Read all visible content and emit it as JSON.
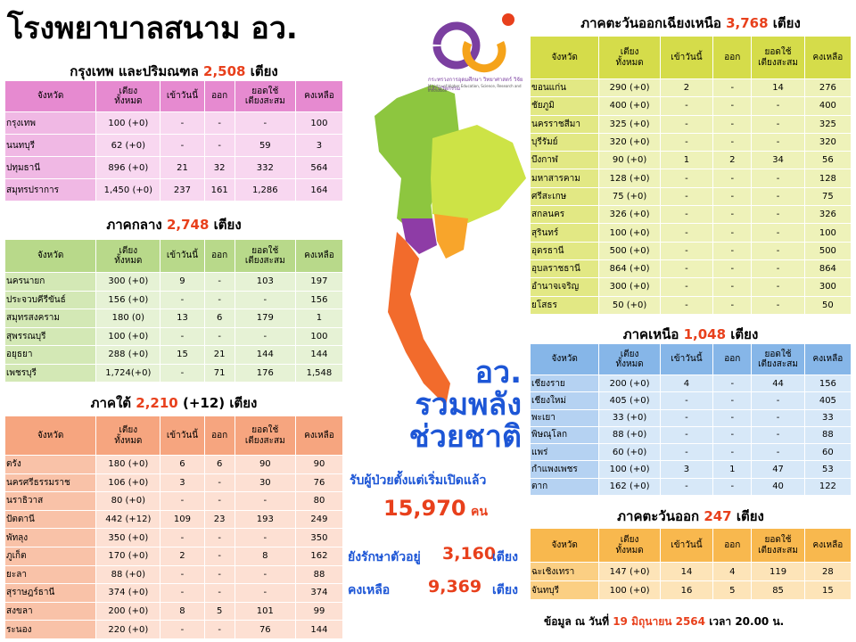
{
  "header": {
    "title": "โรงพยาบาลสนาม อว.",
    "logo_text": "กระทรวงการอุดมศึกษา วิทยาศาสตร์ วิจัยและนวัตกรรม",
    "logo_text_en": "Ministry of Higher Education, Science, Research and Innovation"
  },
  "sections": {
    "bangkok": {
      "name": "กรุงเทพ และปริมณฑล",
      "count": "2,508",
      "unit": "เตียง",
      "columns": [
        "จังหวัด",
        "เตียง\nทั้งหมด",
        "เข้าวันนี้",
        "ออก",
        "ยอดใช้\nเตียงสะสม",
        "คงเหลือ"
      ],
      "rows": [
        [
          "กรุงเทพ",
          "100 (+0)",
          "-",
          "-",
          "-",
          "100"
        ],
        [
          "นนทบุรี",
          "62 (+0)",
          "-",
          "-",
          "59",
          "3"
        ],
        [
          "ปทุมธานี",
          "896 (+0)",
          "21",
          "32",
          "332",
          "564"
        ],
        [
          "สมุทรปราการ",
          "1,450 (+0)",
          "237",
          "161",
          "1,286",
          "164"
        ]
      ]
    },
    "central": {
      "name": "ภาคกลาง",
      "count": "2,748",
      "unit": "เตียง",
      "columns": [
        "จังหวัด",
        "เตียง\nทั้งหมด",
        "เข้าวันนี้",
        "ออก",
        "ยอดใช้\nเตียงสะสม",
        "คงเหลือ"
      ],
      "rows": [
        [
          "นครนายก",
          "300 (+0)",
          "9",
          "-",
          "103",
          "197"
        ],
        [
          "ประจวบคีรีขันธ์",
          "156 (+0)",
          "-",
          "-",
          "-",
          "156"
        ],
        [
          "สมุทรสงคราม",
          "180 (0)",
          "13",
          "6",
          "179",
          "1"
        ],
        [
          "สุพรรณบุรี",
          "100 (+0)",
          "-",
          "-",
          "-",
          "100"
        ],
        [
          "อยุธยา",
          "288 (+0)",
          "15",
          "21",
          "144",
          "144"
        ],
        [
          "เพชรบุรี",
          "1,724(+0)",
          "-",
          "71",
          "176",
          "1,548"
        ]
      ]
    },
    "south": {
      "name": "ภาคใต้",
      "count": "2,210",
      "note": "(+12)",
      "unit": "เตียง",
      "columns": [
        "จังหวัด",
        "เตียง\nทั้งหมด",
        "เข้าวันนี้",
        "ออก",
        "ยอดใช้\nเตียงสะสม",
        "คงเหลือ"
      ],
      "rows": [
        [
          "ตรัง",
          "180 (+0)",
          "6",
          "6",
          "90",
          "90"
        ],
        [
          "นครศรีธรรมราช",
          "106 (+0)",
          "3",
          "-",
          "30",
          "76"
        ],
        [
          "นราธิวาส",
          "80 (+0)",
          "-",
          "-",
          "-",
          "80"
        ],
        [
          "ปัตตานี",
          "442 (+12)",
          "109",
          "23",
          "193",
          "249"
        ],
        [
          "พัทลุง",
          "350 (+0)",
          "-",
          "-",
          "-",
          "350"
        ],
        [
          "ภูเก็ต",
          "170 (+0)",
          "2",
          "-",
          "8",
          "162"
        ],
        [
          "ยะลา",
          "88 (+0)",
          "-",
          "-",
          "-",
          "88"
        ],
        [
          "สุราษฎร์ธานี",
          "374 (+0)",
          "-",
          "-",
          "-",
          "374"
        ],
        [
          "สงขลา",
          "200 (+0)",
          "8",
          "5",
          "101",
          "99"
        ],
        [
          "ระนอง",
          "220 (+0)",
          "-",
          "-",
          "76",
          "144"
        ]
      ]
    },
    "northeast": {
      "name": "ภาคตะวันออกเฉียงเหนือ",
      "count": "3,768",
      "unit": "เตียง",
      "columns": [
        "จังหวัด",
        "เตียง\nทั้งหมด",
        "เข้าวันนี้",
        "ออก",
        "ยอดใช้\nเตียงสะสม",
        "คงเหลือ"
      ],
      "rows": [
        [
          "ขอนแก่น",
          "290 (+0)",
          "2",
          "-",
          "14",
          "276"
        ],
        [
          "ชัยภูมิ",
          "400 (+0)",
          "-",
          "-",
          "-",
          "400"
        ],
        [
          "นครราชสีมา",
          "325 (+0)",
          "-",
          "-",
          "-",
          "325"
        ],
        [
          "บุรีรัมย์",
          "320 (+0)",
          "-",
          "-",
          "-",
          "320"
        ],
        [
          "บึงกาฬ",
          "90 (+0)",
          "1",
          "2",
          "34",
          "56"
        ],
        [
          "มหาสารคาม",
          "128 (+0)",
          "-",
          "-",
          "-",
          "128"
        ],
        [
          "ศรีสะเกษ",
          "75 (+0)",
          "-",
          "-",
          "-",
          "75"
        ],
        [
          "สกลนคร",
          "326 (+0)",
          "-",
          "-",
          "-",
          "326"
        ],
        [
          "สุรินทร์",
          "100 (+0)",
          "-",
          "-",
          "-",
          "100"
        ],
        [
          "อุดรธานี",
          "500 (+0)",
          "-",
          "-",
          "-",
          "500"
        ],
        [
          "อุบลราชธานี",
          "864 (+0)",
          "-",
          "-",
          "-",
          "864"
        ],
        [
          "อำนาจเจริญ",
          "300 (+0)",
          "-",
          "-",
          "-",
          "300"
        ],
        [
          "ยโสธร",
          "50 (+0)",
          "-",
          "-",
          "-",
          "50"
        ]
      ]
    },
    "north": {
      "name": "ภาคเหนือ",
      "count": "1,048",
      "unit": "เตียง",
      "columns": [
        "จังหวัด",
        "เตียง\nทั้งหมด",
        "เข้าวันนี้",
        "ออก",
        "ยอดใช้\nเตียงสะสม",
        "คงเหลือ"
      ],
      "rows": [
        [
          "เชียงราย",
          "200 (+0)",
          "4",
          "-",
          "44",
          "156"
        ],
        [
          "เชียงใหม่",
          "405 (+0)",
          "-",
          "-",
          "-",
          "405"
        ],
        [
          "พะเยา",
          "33 (+0)",
          "-",
          "-",
          "-",
          "33"
        ],
        [
          "พิษณุโลก",
          "88 (+0)",
          "-",
          "-",
          "-",
          "88"
        ],
        [
          "แพร่",
          "60 (+0)",
          "-",
          "-",
          "-",
          "60"
        ],
        [
          "กำแพงเพชร",
          "100 (+0)",
          "3",
          "1",
          "47",
          "53"
        ],
        [
          "ตาก",
          "162 (+0)",
          "-",
          "-",
          "40",
          "122"
        ]
      ]
    },
    "east": {
      "name": "ภาคตะวันออก",
      "count": "247",
      "unit": "เตียง",
      "columns": [
        "จังหวัด",
        "เตียง\nทั้งหมด",
        "เข้าวันนี้",
        "ออก",
        "ยอดใช้\nเตียงสะสม",
        "คงเหลือ"
      ],
      "rows": [
        [
          "ฉะเชิงเทรา",
          "147 (+0)",
          "14",
          "4",
          "119",
          "28"
        ],
        [
          "จันทบุรี",
          "100 (+0)",
          "16",
          "5",
          "85",
          "15"
        ]
      ]
    }
  },
  "summary": {
    "slogan": [
      "อว.",
      "รวมพลัง",
      "ช่วยชาติ"
    ],
    "admitted_label": "รับผู้ป่วยตั้งแต่เริ่มเปิดแล้ว",
    "admitted": "15,970",
    "admitted_unit": "คน",
    "in_care_label": "ยังรักษาตัวอยู่",
    "in_care": "3,160",
    "in_care_unit": "เตียง",
    "remaining_label": "คงเหลือ",
    "remaining": "9,369",
    "remaining_unit": "เตียง"
  },
  "footer": {
    "prefix": "ข้อมูล ณ วันที่",
    "date": "19 มิถุนายน 2564",
    "time": "เวลา 20.00 น."
  }
}
